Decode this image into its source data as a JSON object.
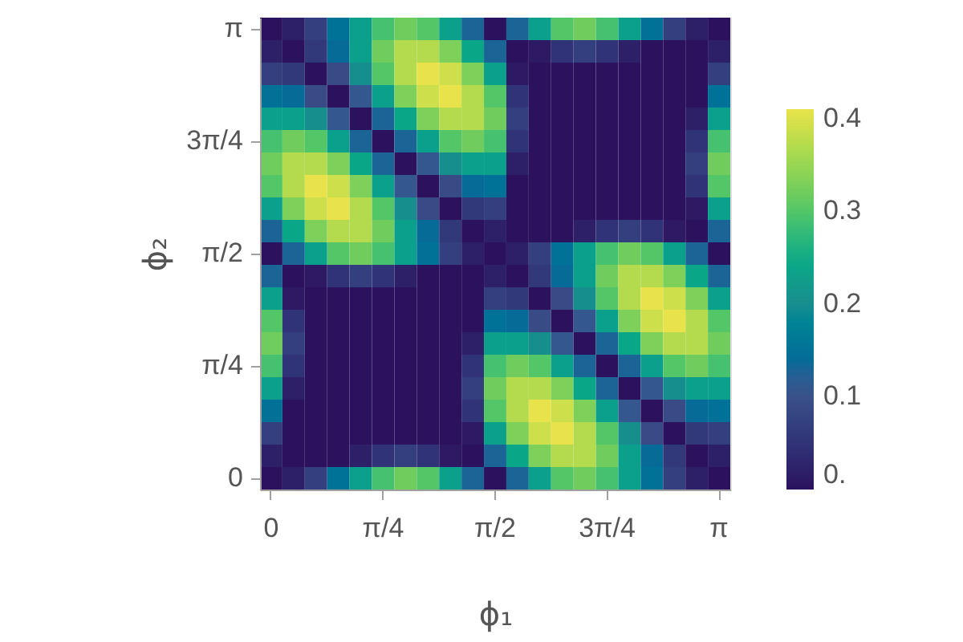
{
  "chart_data": {
    "type": "heatmap",
    "xlabel": "ϕ₁",
    "ylabel": "ϕ₂",
    "categories": [
      "0",
      null,
      null,
      null,
      null,
      "π/4",
      null,
      null,
      null,
      null,
      "π/2",
      null,
      null,
      null,
      null,
      "3π/4",
      null,
      null,
      null,
      null,
      "π"
    ],
    "y_categories": [
      "π",
      null,
      null,
      null,
      null,
      "3π/4",
      null,
      null,
      null,
      null,
      "π/2",
      null,
      null,
      null,
      null,
      "π/4",
      null,
      null,
      null,
      null,
      "0"
    ],
    "clim": [
      0,
      0.41
    ],
    "cticks": [
      {
        "value": 0,
        "label": "0."
      },
      0.1,
      0.2,
      0.3,
      0.4
    ],
    "cells": [
      [
        0,
        0.02,
        0.07,
        0.15,
        0.23,
        0.29,
        0.32,
        0.3,
        0.23,
        0.13,
        0,
        0.13,
        0.23,
        0.3,
        0.32,
        0.29,
        0.23,
        0.15,
        0.07,
        0.02,
        0
      ],
      [
        0.02,
        0,
        0.06,
        0.14,
        0.23,
        0.32,
        0.37,
        0.37,
        0.33,
        0.24,
        0.13,
        0,
        0.01,
        0.05,
        0.07,
        0.05,
        0.02,
        0,
        0,
        0,
        0.02
      ],
      [
        0.07,
        0.06,
        0,
        0.09,
        0.2,
        0.3,
        0.37,
        0.41,
        0.39,
        0.33,
        0.23,
        0.01,
        0,
        0,
        0,
        0,
        0,
        0,
        0,
        0,
        0.07
      ],
      [
        0.15,
        0.14,
        0.09,
        0,
        0.11,
        0.23,
        0.33,
        0.39,
        0.41,
        0.37,
        0.3,
        0.05,
        0,
        0,
        0,
        0,
        0,
        0,
        0,
        0,
        0.15
      ],
      [
        0.23,
        0.23,
        0.2,
        0.11,
        0,
        0.13,
        0.24,
        0.33,
        0.37,
        0.37,
        0.32,
        0.07,
        0,
        0,
        0,
        0,
        0,
        0,
        0,
        0.02,
        0.23
      ],
      [
        0.29,
        0.32,
        0.3,
        0.23,
        0.13,
        0,
        0.13,
        0.23,
        0.3,
        0.32,
        0.29,
        0.05,
        0,
        0,
        0,
        0,
        0,
        0,
        0,
        0.05,
        0.29
      ],
      [
        0.32,
        0.37,
        0.37,
        0.33,
        0.24,
        0.13,
        0,
        0.11,
        0.2,
        0.23,
        0.23,
        0.02,
        0,
        0,
        0,
        0,
        0,
        0,
        0,
        0.07,
        0.32
      ],
      [
        0.3,
        0.37,
        0.41,
        0.39,
        0.33,
        0.23,
        0.11,
        0,
        0.09,
        0.14,
        0.15,
        0,
        0,
        0,
        0,
        0,
        0,
        0,
        0,
        0.05,
        0.3
      ],
      [
        0.23,
        0.33,
        0.39,
        0.41,
        0.37,
        0.3,
        0.2,
        0.09,
        0,
        0.06,
        0.07,
        0,
        0,
        0,
        0,
        0,
        0,
        0,
        0,
        0.01,
        0.23
      ],
      [
        0.13,
        0.24,
        0.33,
        0.37,
        0.37,
        0.32,
        0.23,
        0.14,
        0.06,
        0,
        0.02,
        0,
        0,
        0,
        0.02,
        0.05,
        0.07,
        0.05,
        0.01,
        0,
        0.13
      ],
      [
        0,
        0.13,
        0.23,
        0.3,
        0.32,
        0.29,
        0.23,
        0.15,
        0.07,
        0.02,
        0,
        0.02,
        0.07,
        0.15,
        0.23,
        0.29,
        0.32,
        0.3,
        0.23,
        0.13,
        0
      ],
      [
        0.13,
        0,
        0.01,
        0.05,
        0.07,
        0.05,
        0.02,
        0,
        0,
        0,
        0.02,
        0,
        0.06,
        0.14,
        0.23,
        0.32,
        0.37,
        0.37,
        0.33,
        0.24,
        0.13
      ],
      [
        0.23,
        0.01,
        0,
        0,
        0,
        0,
        0,
        0,
        0,
        0,
        0.07,
        0.06,
        0,
        0.09,
        0.2,
        0.3,
        0.37,
        0.41,
        0.39,
        0.33,
        0.23
      ],
      [
        0.3,
        0.05,
        0,
        0,
        0,
        0,
        0,
        0,
        0,
        0,
        0.15,
        0.14,
        0.09,
        0,
        0.11,
        0.23,
        0.33,
        0.39,
        0.41,
        0.37,
        0.3
      ],
      [
        0.32,
        0.07,
        0,
        0,
        0,
        0,
        0,
        0,
        0,
        0.02,
        0.23,
        0.23,
        0.2,
        0.11,
        0,
        0.13,
        0.24,
        0.33,
        0.37,
        0.37,
        0.32
      ],
      [
        0.29,
        0.05,
        0,
        0,
        0,
        0,
        0,
        0,
        0,
        0.05,
        0.29,
        0.32,
        0.3,
        0.23,
        0.13,
        0,
        0.13,
        0.23,
        0.3,
        0.32,
        0.29
      ],
      [
        0.23,
        0.02,
        0,
        0,
        0,
        0,
        0,
        0,
        0,
        0.07,
        0.32,
        0.37,
        0.37,
        0.33,
        0.24,
        0.13,
        0,
        0.11,
        0.2,
        0.23,
        0.23
      ],
      [
        0.15,
        0,
        0,
        0,
        0,
        0,
        0,
        0,
        0,
        0.05,
        0.3,
        0.37,
        0.41,
        0.39,
        0.33,
        0.23,
        0.11,
        0,
        0.09,
        0.14,
        0.15
      ],
      [
        0.07,
        0,
        0,
        0,
        0,
        0,
        0,
        0,
        0,
        0.01,
        0.23,
        0.33,
        0.39,
        0.41,
        0.37,
        0.3,
        0.2,
        0.09,
        0,
        0.06,
        0.07
      ],
      [
        0.02,
        0,
        0,
        0,
        0.02,
        0.05,
        0.07,
        0.05,
        0.01,
        0,
        0.13,
        0.24,
        0.33,
        0.37,
        0.37,
        0.32,
        0.23,
        0.14,
        0.06,
        0,
        0.02
      ],
      [
        0,
        0.02,
        0.07,
        0.15,
        0.23,
        0.29,
        0.32,
        0.3,
        0.23,
        0.13,
        0,
        0.13,
        0.23,
        0.3,
        0.32,
        0.29,
        0.23,
        0.15,
        0.07,
        0.02,
        0
      ]
    ]
  }
}
